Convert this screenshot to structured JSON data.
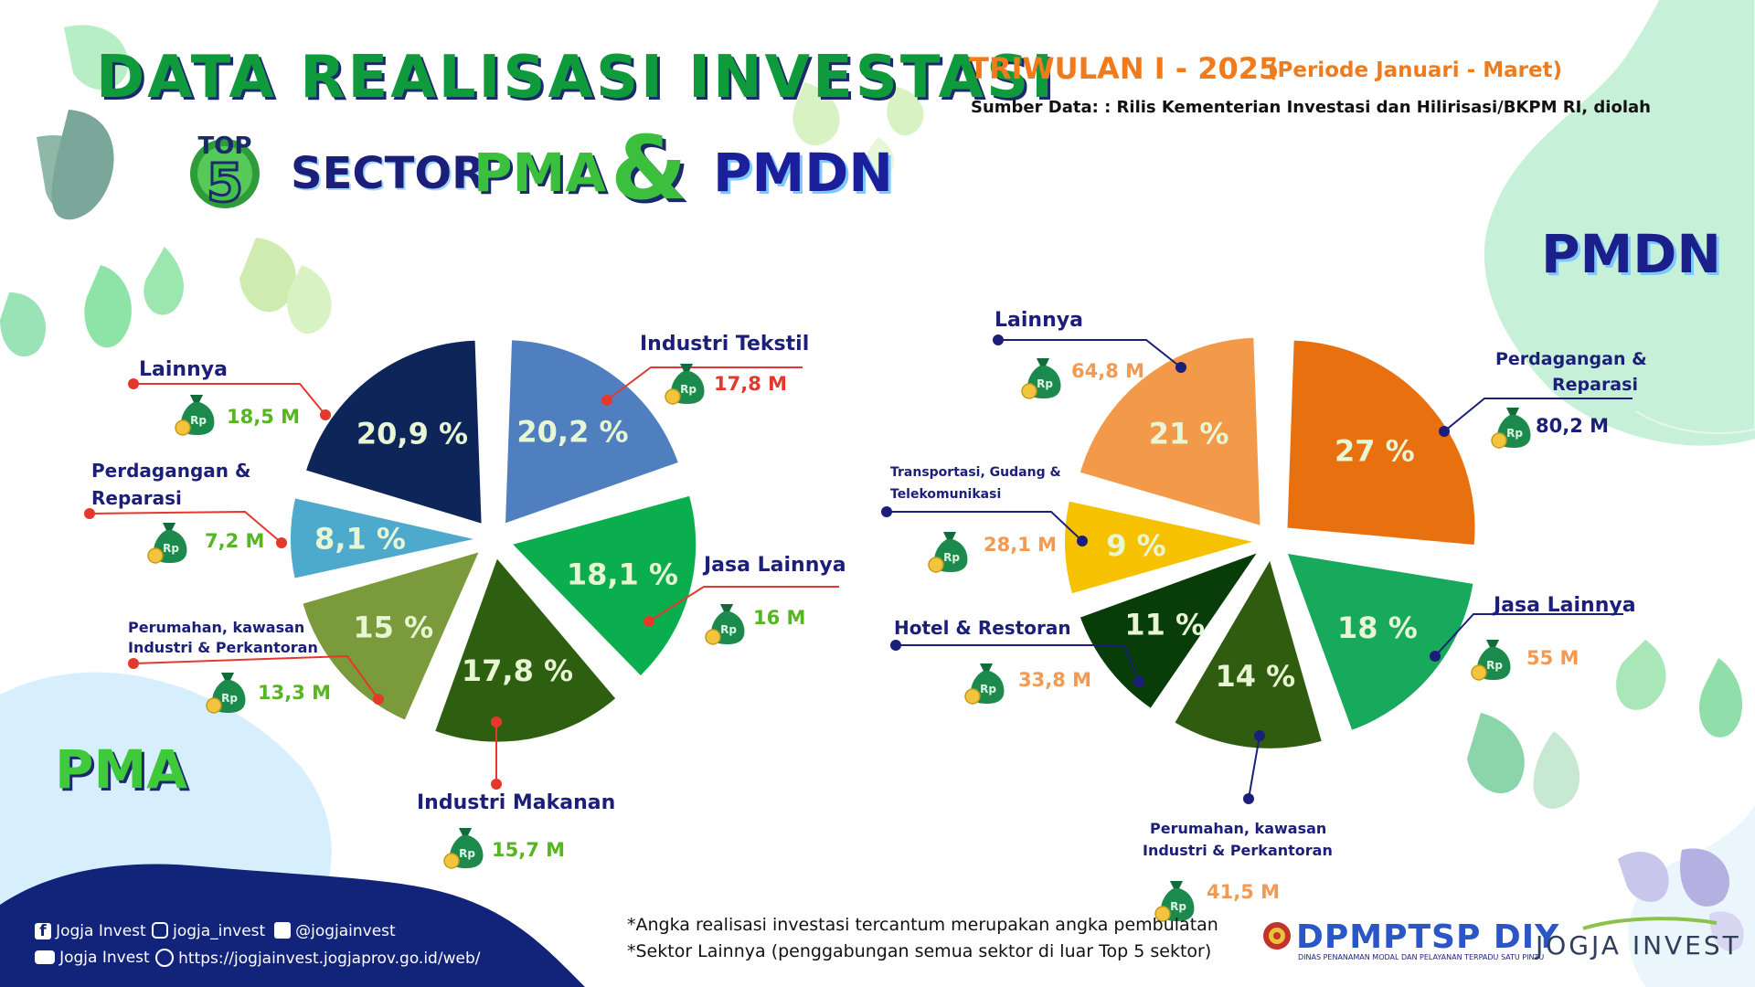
{
  "header": {
    "title": "DATA REALISASI INVESTASI",
    "top_badge": "TOP",
    "top_number": "5",
    "sector_word": "SECTOR",
    "pma_word": "PMA",
    "ampersand": "&",
    "pmdn_word": "PMDN",
    "triwulan": "TRIWULAN I - 2025",
    "periode": "(Periode Januari - Maret)",
    "sumber": "Sumber Data: : Rilis Kementerian Investasi dan Hilirisasi/BKPM RI, diolah"
  },
  "colors": {
    "title_green": "#0f9b3b",
    "navy": "#1b1f7a",
    "orange": "#f07b1d",
    "footer_bg": "#12237a"
  },
  "chart_data": [
    {
      "type": "pie",
      "title": "PMA",
      "categories": [
        "Industri Tekstil",
        "Jasa Lainnya",
        "Industri Makanan",
        "Perumahan, kawasan Industri & Perkantoran",
        "Perdagangan & Reparasi",
        "Lainnya"
      ],
      "values": [
        20.2,
        18.1,
        17.8,
        15,
        8.1,
        20.9
      ],
      "percent_labels": [
        "20,2 %",
        "18,1 %",
        "17,8 %",
        "15  %",
        "8,1 %",
        "20,9 %"
      ],
      "amount_labels": [
        "17,8 M",
        "16 M",
        "15,7 M",
        "13,3 M",
        "7,2 M",
        "18,5 M"
      ],
      "slice_colors": [
        "#4f7fbf",
        "#0aae4e",
        "#2e5e10",
        "#7a9a3c",
        "#4eaacc",
        "#0e2559"
      ],
      "unit": "%"
    },
    {
      "type": "pie",
      "title": "PMDN",
      "categories": [
        "Perdagangan & Reparasi",
        "Jasa Lainnya",
        "Perumahan, kawasan Industri & Perkantoran",
        "Hotel & Restoran",
        "Transportasi, Gudang & Telekomunikasi",
        "Lainnya"
      ],
      "values": [
        27,
        18,
        14,
        11,
        9,
        21
      ],
      "percent_labels": [
        "27  %",
        "18  %",
        "14  %",
        "11  %",
        "9  %",
        "21  %"
      ],
      "amount_labels": [
        "80,2 M",
        "55 M",
        "41,5 M",
        "33,8 M",
        "28,1 M",
        "64,8 M"
      ],
      "slice_colors": [
        "#e8700e",
        "#17a95c",
        "#2f5c0e",
        "#083d0a",
        "#f6c200",
        "#f39a4a"
      ],
      "unit": "%"
    }
  ],
  "pma": {
    "label": "PMA",
    "items": [
      {
        "label": "Industri Tekstil",
        "amount": "17,8 M"
      },
      {
        "label": "Jasa Lainnya",
        "amount": "16 M"
      },
      {
        "label": "Industri Makanan",
        "amount": "15,7 M"
      },
      {
        "label_line1": "Perumahan, kawasan",
        "label_line2": "Industri & Perkantoran",
        "amount": "13,3 M"
      },
      {
        "label_line1": "Perdagangan &",
        "label_line2": "Reparasi",
        "amount": "7,2 M"
      },
      {
        "label": "Lainnya",
        "amount": "18,5 M"
      }
    ]
  },
  "pmdn": {
    "label": "PMDN",
    "items": [
      {
        "label_line1": "Perdagangan &",
        "label_line2": "Reparasi",
        "amount": "80,2 M"
      },
      {
        "label": "Jasa Lainnya",
        "amount": "55 M"
      },
      {
        "label_line1": "Perumahan, kawasan",
        "label_line2": "Industri & Perkantoran",
        "amount": "41,5 M"
      },
      {
        "label": "Hotel & Restoran",
        "amount": "33,8 M"
      },
      {
        "label_line1": "Transportasi, Gudang &",
        "label_line2": "Telekomunikasi",
        "amount": "28,1 M"
      },
      {
        "label": "Lainnya",
        "amount": "64,8 M"
      }
    ]
  },
  "money_bag_glyph": "Rp",
  "footer": {
    "facebook": "Jogja Invest",
    "instagram": "jogja_invest",
    "twitter": "@jogjainvest",
    "youtube": "Jogja Invest",
    "website": "https://jogjainvest.jogjaprov.go.id/web/",
    "note1": "*Angka realisasi investasi tercantum merupakan angka pembulatan",
    "note2": "*Sektor Lainnya (penggabungan semua sektor di luar Top 5 sektor)",
    "logo_dpmptsp": "DPMPTSP DIY",
    "logo_dpmptsp_sub": "DINAS PENANAMAN MODAL DAN PELAYANAN TERPADU SATU PINTU",
    "logo_jogja": "JOGJA INVEST"
  }
}
